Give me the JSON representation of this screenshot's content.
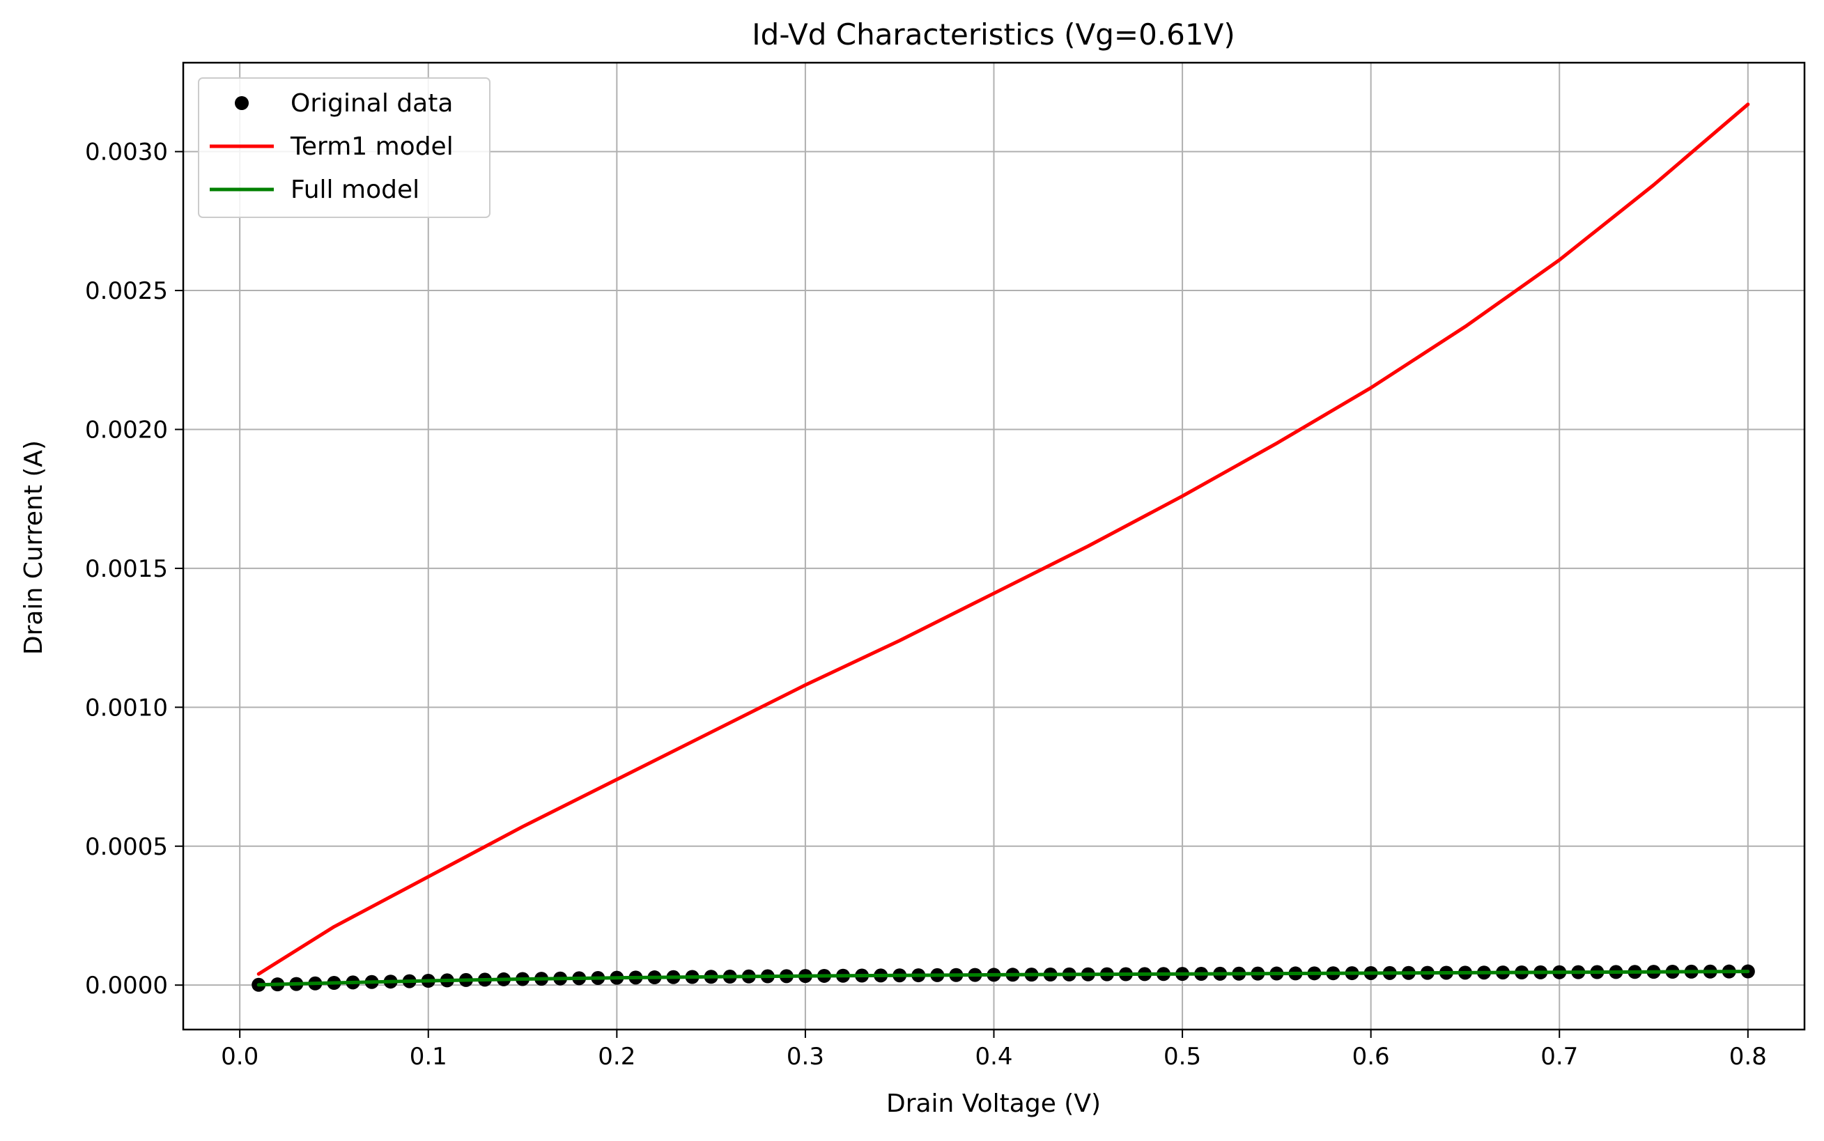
{
  "chart_data": {
    "type": "line",
    "title": "Id-Vd Characteristics (Vg=0.61V)",
    "xlabel": "Drain Voltage (V)",
    "ylabel": "Drain Current (A)",
    "xlim": [
      -0.03,
      0.83
    ],
    "ylim": [
      -0.00016,
      0.00332
    ],
    "xticks": [
      "0.0",
      "0.1",
      "0.2",
      "0.3",
      "0.4",
      "0.5",
      "0.6",
      "0.7",
      "0.8"
    ],
    "xtick_values": [
      0.0,
      0.1,
      0.2,
      0.3,
      0.4,
      0.5,
      0.6,
      0.7,
      0.8
    ],
    "yticks": [
      "0.0000",
      "0.0005",
      "0.0010",
      "0.0015",
      "0.0020",
      "0.0025",
      "0.0030"
    ],
    "ytick_values": [
      0.0,
      0.0005,
      0.001,
      0.0015,
      0.002,
      0.0025,
      0.003
    ],
    "grid": true,
    "legend_position": "top-left",
    "series": [
      {
        "name": "Original data",
        "style": "markers",
        "color": "#000000",
        "x": [
          0.01,
          0.02,
          0.03,
          0.04,
          0.05,
          0.06,
          0.07,
          0.08,
          0.09,
          0.1,
          0.11,
          0.12,
          0.13,
          0.14,
          0.15,
          0.16,
          0.17,
          0.18,
          0.19,
          0.2,
          0.21,
          0.22,
          0.23,
          0.24,
          0.25,
          0.26,
          0.27,
          0.28,
          0.29,
          0.3,
          0.31,
          0.32,
          0.33,
          0.34,
          0.35,
          0.36,
          0.37,
          0.38,
          0.39,
          0.4,
          0.41,
          0.42,
          0.43,
          0.44,
          0.45,
          0.46,
          0.47,
          0.48,
          0.49,
          0.5,
          0.51,
          0.52,
          0.53,
          0.54,
          0.55,
          0.56,
          0.57,
          0.58,
          0.59,
          0.6,
          0.61,
          0.62,
          0.63,
          0.64,
          0.65,
          0.66,
          0.67,
          0.68,
          0.69,
          0.7,
          0.71,
          0.72,
          0.73,
          0.74,
          0.75,
          0.76,
          0.77,
          0.78,
          0.79,
          0.8
        ],
        "y": [
          1e-06,
          2.5e-06,
          4e-06,
          6e-06,
          8e-06,
          9.5e-06,
          1.1e-05,
          1.25e-05,
          1.4e-05,
          1.55e-05,
          1.7e-05,
          1.82e-05,
          1.95e-05,
          2.07e-05,
          2.18e-05,
          2.28e-05,
          2.38e-05,
          2.47e-05,
          2.56e-05,
          2.64e-05,
          2.72e-05,
          2.79e-05,
          2.86e-05,
          2.93e-05,
          2.99e-05,
          3.05e-05,
          3.11e-05,
          3.17e-05,
          3.22e-05,
          3.27e-05,
          3.32e-05,
          3.37e-05,
          3.42e-05,
          3.46e-05,
          3.5e-05,
          3.54e-05,
          3.58e-05,
          3.62e-05,
          3.66e-05,
          3.7e-05,
          3.73e-05,
          3.77e-05,
          3.8e-05,
          3.84e-05,
          3.87e-05,
          3.9e-05,
          3.93e-05,
          3.96e-05,
          3.99e-05,
          4.02e-05,
          4.05e-05,
          4.08e-05,
          4.11e-05,
          4.14e-05,
          4.17e-05,
          4.2e-05,
          4.23e-05,
          4.26e-05,
          4.29e-05,
          4.32e-05,
          4.35e-05,
          4.38e-05,
          4.41e-05,
          4.44e-05,
          4.47e-05,
          4.5e-05,
          4.53e-05,
          4.56e-05,
          4.59e-05,
          4.62e-05,
          4.65e-05,
          4.68e-05,
          4.71e-05,
          4.74e-05,
          4.77e-05,
          4.8e-05,
          4.83e-05,
          4.86e-05,
          4.89e-05,
          4.92e-05
        ]
      },
      {
        "name": "Term1 model",
        "style": "line",
        "color": "#ff0000",
        "x": [
          0.01,
          0.05,
          0.1,
          0.15,
          0.2,
          0.25,
          0.3,
          0.35,
          0.4,
          0.45,
          0.5,
          0.55,
          0.6,
          0.65,
          0.7,
          0.75,
          0.8
        ],
        "y": [
          4e-05,
          0.00021,
          0.00039,
          0.00057,
          0.00074,
          0.00091,
          0.00108,
          0.00124,
          0.00141,
          0.00158,
          0.00176,
          0.00195,
          0.00215,
          0.00237,
          0.00261,
          0.00288,
          0.00317
        ]
      },
      {
        "name": "Full model",
        "style": "line",
        "color": "#008000",
        "x": [
          0.01,
          0.05,
          0.1,
          0.15,
          0.2,
          0.25,
          0.3,
          0.35,
          0.4,
          0.45,
          0.5,
          0.55,
          0.6,
          0.65,
          0.7,
          0.75,
          0.8
        ],
        "y": [
          1e-06,
          8e-06,
          1.55e-05,
          2.18e-05,
          2.64e-05,
          2.99e-05,
          3.27e-05,
          3.5e-05,
          3.7e-05,
          3.87e-05,
          4.02e-05,
          4.17e-05,
          4.32e-05,
          4.47e-05,
          4.62e-05,
          4.77e-05,
          4.92e-05
        ]
      }
    ]
  }
}
